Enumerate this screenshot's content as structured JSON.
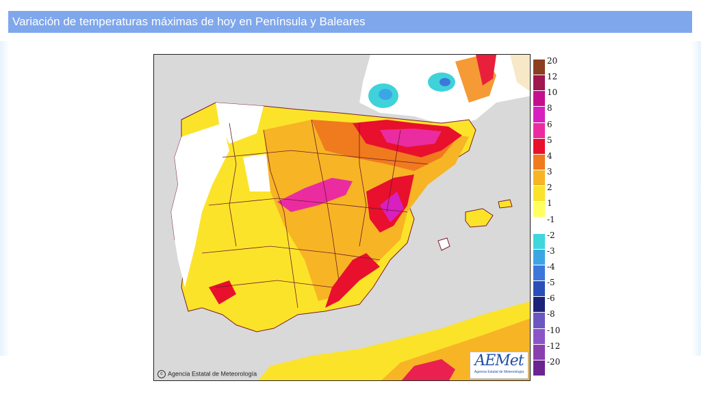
{
  "header": {
    "title": "Variación de temperaturas máximas de hoy en Península y Baleares"
  },
  "map": {
    "copyright": "Agencia Estatal de Meteorología",
    "copyright_icon": "copyright-icon",
    "logo": {
      "mark": "AEMet",
      "subtitle": "Agencia Estatal de Meteorología"
    }
  },
  "legend": {
    "labels": [
      "20",
      "12",
      "10",
      "8",
      "6",
      "5",
      "4",
      "3",
      "2",
      "1",
      "-1",
      "-2",
      "-3",
      "-4",
      "-5",
      "-6",
      "-8",
      "-10",
      "-12",
      "-20"
    ],
    "colors": [
      "#8b3f20",
      "#a0164f",
      "#c4108f",
      "#d820c0",
      "#ea2ca0",
      "#e8102c",
      "#f07a1e",
      "#f7b425",
      "#fbe32a",
      "#ffff60",
      "#ffffff",
      "#40d6dc",
      "#3aa6e6",
      "#3c78da",
      "#2a4fb8",
      "#1b2278",
      "#6a58c0",
      "#8b55c8",
      "#8a3fae",
      "#6b2490"
    ]
  }
}
